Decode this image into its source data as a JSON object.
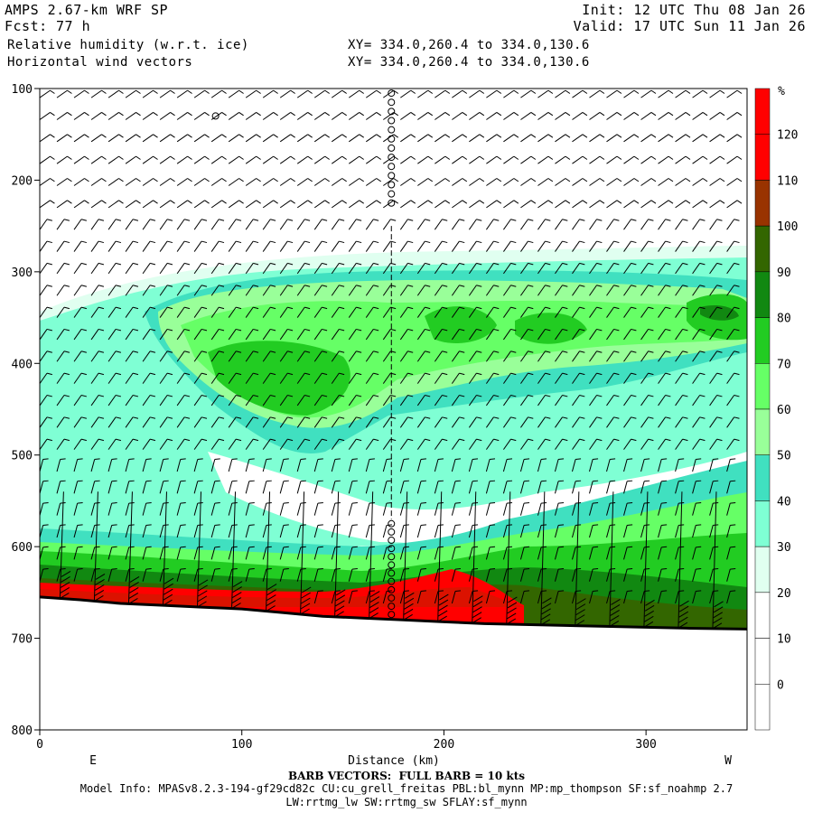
{
  "header": {
    "model": "AMPS 2.67-km WRF SP",
    "fcst_label": "Fcst:",
    "fcst_value": "77 h",
    "init": "Init: 12 UTC Thu 08 Jan 26",
    "valid": "Valid: 17 UTC Sun 11 Jan 26",
    "field1": "Relative humidity (w.r.t. ice)",
    "field2": "Horizontal wind vectors",
    "xy1": "XY= 334.0,260.4 to 334.0,130.6",
    "xy2": "XY= 334.0,260.4 to 334.0,130.6"
  },
  "footer": {
    "barb_note": "BARB VECTORS:  FULL BARB = 10 kts",
    "model_info": "Model Info: MPASv8.2.3-194-gf29cd82c CU:cu_grell_freitas PBL:bl_mynn MP:mp_thompson SF:sf_noahmp 2.7",
    "model_info2": "LW:rrtmg_lw SW:rrtmg_sw SFLAY:sf_mynn"
  },
  "chart_data": {
    "type": "heatmap",
    "title": "Relative humidity (w.r.t. ice)",
    "xlabel": "Distance (km)",
    "ylabel": "",
    "xlim": [
      0,
      350
    ],
    "ylim": [
      800,
      100
    ],
    "x_ticks": [
      0,
      100,
      200,
      300
    ],
    "y_ticks": [
      100,
      200,
      300,
      400,
      500,
      600,
      700,
      800
    ],
    "x_end_labels": {
      "left": "E",
      "right": "W"
    },
    "colorbar": {
      "unit": "%",
      "levels": [
        0,
        10,
        20,
        30,
        40,
        50,
        60,
        70,
        80,
        90,
        100,
        110,
        120
      ],
      "colors": [
        "#ffffff",
        "#ffffff",
        "#ffffff",
        "#e0fff0",
        "#7fffd4",
        "#40e0c0",
        "#99ff99",
        "#66ff66",
        "#22cc22",
        "#118811",
        "#336600",
        "#993300",
        "#ff0000"
      ]
    },
    "terrain_pressure": [
      {
        "x": 0,
        "p": 655
      },
      {
        "x": 20,
        "p": 658
      },
      {
        "x": 40,
        "p": 662
      },
      {
        "x": 60,
        "p": 664
      },
      {
        "x": 80,
        "p": 666
      },
      {
        "x": 100,
        "p": 668
      },
      {
        "x": 120,
        "p": 672
      },
      {
        "x": 140,
        "p": 676
      },
      {
        "x": 160,
        "p": 678
      },
      {
        "x": 180,
        "p": 680
      },
      {
        "x": 200,
        "p": 682
      },
      {
        "x": 220,
        "p": 684
      },
      {
        "x": 240,
        "p": 685
      },
      {
        "x": 260,
        "p": 686
      },
      {
        "x": 280,
        "p": 687
      },
      {
        "x": 300,
        "p": 688
      },
      {
        "x": 320,
        "p": 689
      },
      {
        "x": 350,
        "p": 690
      }
    ]
  }
}
